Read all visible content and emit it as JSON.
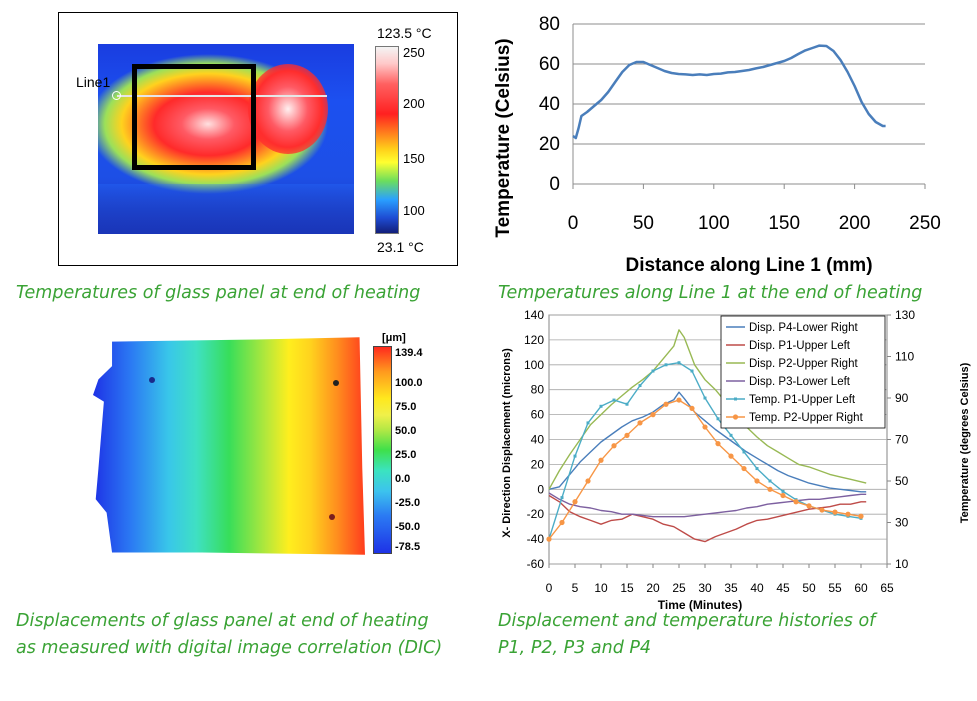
{
  "captions": {
    "thermal": "Temperatures of glass panel at end of heating",
    "line1": "Temperatures along Line 1 at the end of heating",
    "dic_line1": "Displacements of glass panel at end of heating",
    "dic_line2": "as measured with digital image correlation (DIC)",
    "hist_line1": "Displacement and temperature histories of",
    "hist_line2": "P1, P2, P3 and P4"
  },
  "thermal_image": {
    "max_label": "123.5 °C",
    "min_label": "23.1 °C",
    "line_label": "Line1",
    "colorbar_ticks": [
      "250",
      "200",
      "150",
      "100"
    ]
  },
  "dic_image": {
    "unit": "[μm]",
    "colorbar_ticks": [
      "139.4",
      "100.0",
      "75.0",
      "50.0",
      "25.0",
      "0.0",
      "-25.0",
      "-50.0",
      "-78.5"
    ]
  },
  "chart_data": [
    {
      "type": "line",
      "title": "",
      "xlabel": "Distance along Line 1 (mm)",
      "ylabel": "Temperature (Celsius)",
      "xlim": [
        0,
        250
      ],
      "ylim": [
        0,
        80
      ],
      "xticks": [
        "0",
        "50",
        "100",
        "150",
        "200",
        "250"
      ],
      "yticks": [
        "0",
        "20",
        "40",
        "60",
        "80"
      ],
      "grid": "horizontal",
      "series": [
        {
          "color": "#4a7ebb",
          "x": [
            0,
            2,
            4,
            6,
            10,
            15,
            20,
            25,
            30,
            35,
            40,
            45,
            50,
            55,
            60,
            65,
            70,
            75,
            80,
            85,
            90,
            95,
            100,
            105,
            110,
            115,
            120,
            125,
            130,
            135,
            140,
            145,
            150,
            155,
            160,
            165,
            170,
            175,
            180,
            185,
            190,
            195,
            200,
            205,
            210,
            215,
            220,
            222
          ],
          "y": [
            24,
            23,
            28,
            34,
            36,
            39,
            42,
            46,
            51,
            56,
            59.5,
            61,
            61,
            59.5,
            58,
            56.5,
            55.5,
            55,
            54.8,
            54.5,
            54.8,
            54.5,
            55,
            55.2,
            55.8,
            56,
            56.5,
            57,
            57.8,
            58.5,
            59.5,
            60.5,
            61.5,
            63,
            65,
            66.8,
            68,
            69.2,
            69,
            66.5,
            62,
            56,
            49,
            41,
            35,
            31,
            29,
            29
          ]
        }
      ]
    },
    {
      "type": "line",
      "title": "",
      "xlabel": "Time (Minutes)",
      "ylabel": "X- Direction Displacement (microns)",
      "y2label": "Temperature (degrees Celsius)",
      "xlim": [
        0,
        65
      ],
      "ylim": [
        -60,
        140
      ],
      "y2lim": [
        10,
        130
      ],
      "xticks": [
        "0",
        "5",
        "10",
        "15",
        "20",
        "25",
        "30",
        "35",
        "40",
        "45",
        "50",
        "55",
        "60",
        "65"
      ],
      "yticks": [
        "-60",
        "-40",
        "-20",
        "0",
        "20",
        "40",
        "60",
        "80",
        "100",
        "120",
        "140"
      ],
      "y2ticks": [
        "10",
        "30",
        "50",
        "70",
        "90",
        "110",
        "130"
      ],
      "grid": "horizontal",
      "legend": "top-right",
      "series": [
        {
          "name": "Disp. P4-Lower Right",
          "axis": "left",
          "color": "#4a7ebb",
          "x": [
            0,
            2,
            4,
            6,
            8,
            10,
            12,
            14,
            16,
            18,
            20,
            22,
            24,
            25,
            26,
            28,
            30,
            32,
            34,
            36,
            38,
            40,
            42,
            44,
            46,
            48,
            50,
            52,
            54,
            56,
            58,
            60,
            61
          ],
          "y": [
            0,
            2,
            12,
            22,
            30,
            38,
            44,
            50,
            55,
            58,
            62,
            68,
            72,
            78,
            73,
            62,
            55,
            48,
            42,
            36,
            30,
            25,
            20,
            15,
            11,
            8,
            5,
            3,
            1,
            0,
            -1,
            -2,
            -2
          ]
        },
        {
          "name": "Disp. P1-Upper Left",
          "axis": "left",
          "color": "#be4b48",
          "x": [
            0,
            2,
            4,
            6,
            8,
            10,
            12,
            14,
            16,
            18,
            20,
            22,
            24,
            26,
            28,
            30,
            32,
            34,
            36,
            38,
            40,
            42,
            44,
            46,
            48,
            50,
            52,
            54,
            56,
            58,
            60,
            61
          ],
          "y": [
            -5,
            -10,
            -18,
            -22,
            -25,
            -28,
            -25,
            -24,
            -20,
            -22,
            -24,
            -28,
            -30,
            -35,
            -40,
            -42,
            -38,
            -35,
            -32,
            -28,
            -25,
            -24,
            -22,
            -20,
            -18,
            -16,
            -15,
            -14,
            -12,
            -12,
            -10,
            -10
          ]
        },
        {
          "name": "Disp. P2-Upper Right",
          "axis": "left",
          "color": "#98b954",
          "x": [
            0,
            2,
            4,
            6,
            8,
            10,
            12,
            14,
            16,
            18,
            20,
            22,
            24,
            25,
            26,
            28,
            30,
            32,
            34,
            36,
            38,
            40,
            42,
            44,
            46,
            48,
            50,
            52,
            54,
            56,
            58,
            60,
            61
          ],
          "y": [
            0,
            15,
            28,
            40,
            52,
            60,
            68,
            75,
            82,
            88,
            95,
            105,
            115,
            128,
            122,
            100,
            88,
            80,
            70,
            60,
            50,
            42,
            35,
            30,
            25,
            20,
            18,
            15,
            12,
            10,
            8,
            6,
            5
          ]
        },
        {
          "name": "Disp. P3-Lower Left",
          "axis": "left",
          "color": "#7d60a0",
          "x": [
            0,
            2,
            4,
            6,
            8,
            10,
            12,
            14,
            16,
            18,
            20,
            22,
            24,
            26,
            28,
            30,
            32,
            34,
            36,
            38,
            40,
            42,
            44,
            46,
            48,
            50,
            52,
            54,
            56,
            58,
            60,
            61
          ],
          "y": [
            -3,
            -8,
            -12,
            -14,
            -15,
            -17,
            -18,
            -20,
            -20,
            -21,
            -22,
            -22,
            -22,
            -22,
            -21,
            -20,
            -19,
            -18,
            -17,
            -15,
            -14,
            -12,
            -11,
            -10,
            -9,
            -8,
            -8,
            -7,
            -6,
            -5,
            -4,
            -4
          ]
        },
        {
          "name": "Temp. P1-Upper Left",
          "axis": "right",
          "color": "#4bacc6",
          "x": [
            0,
            2.5,
            5,
            7.5,
            10,
            12.5,
            15,
            17.5,
            20,
            22.5,
            25,
            27.5,
            30,
            32.5,
            35,
            37.5,
            40,
            42.5,
            45,
            47.5,
            50,
            52.5,
            55,
            57.5,
            60
          ],
          "y": [
            22,
            42,
            62,
            78,
            86,
            89,
            87,
            96,
            103,
            106,
            107,
            103,
            90,
            80,
            72,
            64,
            56,
            50,
            45,
            41,
            38,
            36,
            34,
            33,
            32
          ]
        },
        {
          "name": "Temp. P2-Upper Right",
          "axis": "right",
          "color": "#f79646",
          "x": [
            0,
            2.5,
            5,
            7.5,
            10,
            12.5,
            15,
            17.5,
            20,
            22.5,
            25,
            27.5,
            30,
            32.5,
            35,
            37.5,
            40,
            42.5,
            45,
            47.5,
            50,
            52.5,
            55,
            57.5,
            60
          ],
          "y": [
            22,
            30,
            40,
            50,
            60,
            67,
            72,
            78,
            82,
            87,
            89,
            85,
            76,
            68,
            62,
            56,
            50,
            46,
            43,
            40,
            38,
            36,
            35,
            34,
            33
          ]
        }
      ]
    }
  ]
}
